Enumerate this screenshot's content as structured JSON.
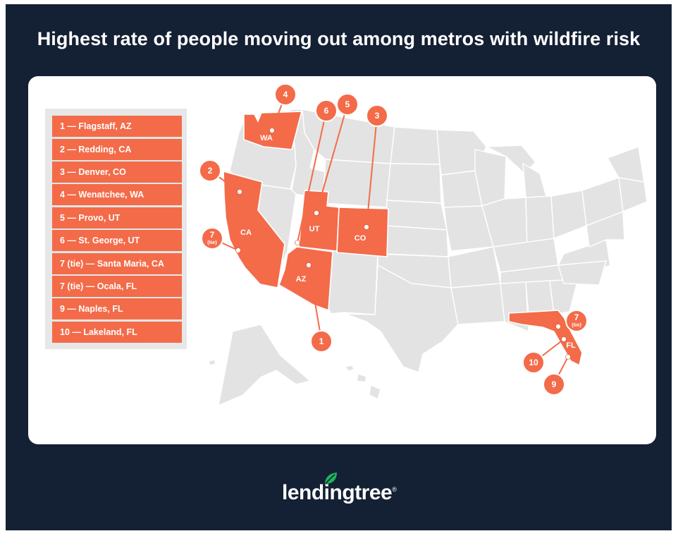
{
  "title": "Highest rate of people moving out among metros with wildfire risk",
  "colors": {
    "background": "#142033",
    "highlight": "#f36b49",
    "base_state": "#e3e3e3",
    "card": "#ffffff",
    "brand_green": "#1db45a"
  },
  "rankings": [
    "1 — Flagstaff, AZ",
    "2 — Redding, CA",
    "3 — Denver, CO",
    "4 — Wenatchee, WA",
    "5 — Provo, UT",
    "6 — St. George, UT",
    "7 (tie) — Santa Maria, CA",
    "7 (tie) — Ocala, FL",
    "9 — Naples, FL",
    "10 — Lakeland, FL"
  ],
  "state_labels": {
    "wa": "WA",
    "ca": "CA",
    "ut": "UT",
    "co": "CO",
    "az": "AZ",
    "fl": "FL"
  },
  "markers": {
    "m1": "1",
    "m2": "2",
    "m3": "3",
    "m4": "4",
    "m5": "5",
    "m6": "6",
    "m7ca": "7",
    "m7ca_sub": "(tie)",
    "m7fl": "7",
    "m7fl_sub": "(tie)",
    "m9": "9",
    "m10": "10"
  },
  "logo": {
    "text": "lendingtree",
    "mark": "®",
    "icon": "leaf-icon"
  }
}
